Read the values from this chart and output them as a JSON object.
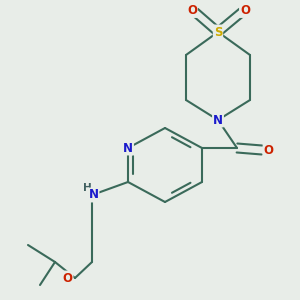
{
  "bg_color": "#e8ede8",
  "atom_colors": {
    "C": "#3a3a3a",
    "N": "#1a1acc",
    "O": "#cc2200",
    "S": "#ccaa00",
    "H": "#406060"
  },
  "bond_color": "#3a6a5a",
  "bond_width": 1.5,
  "fig_bg": "#e8ede8"
}
